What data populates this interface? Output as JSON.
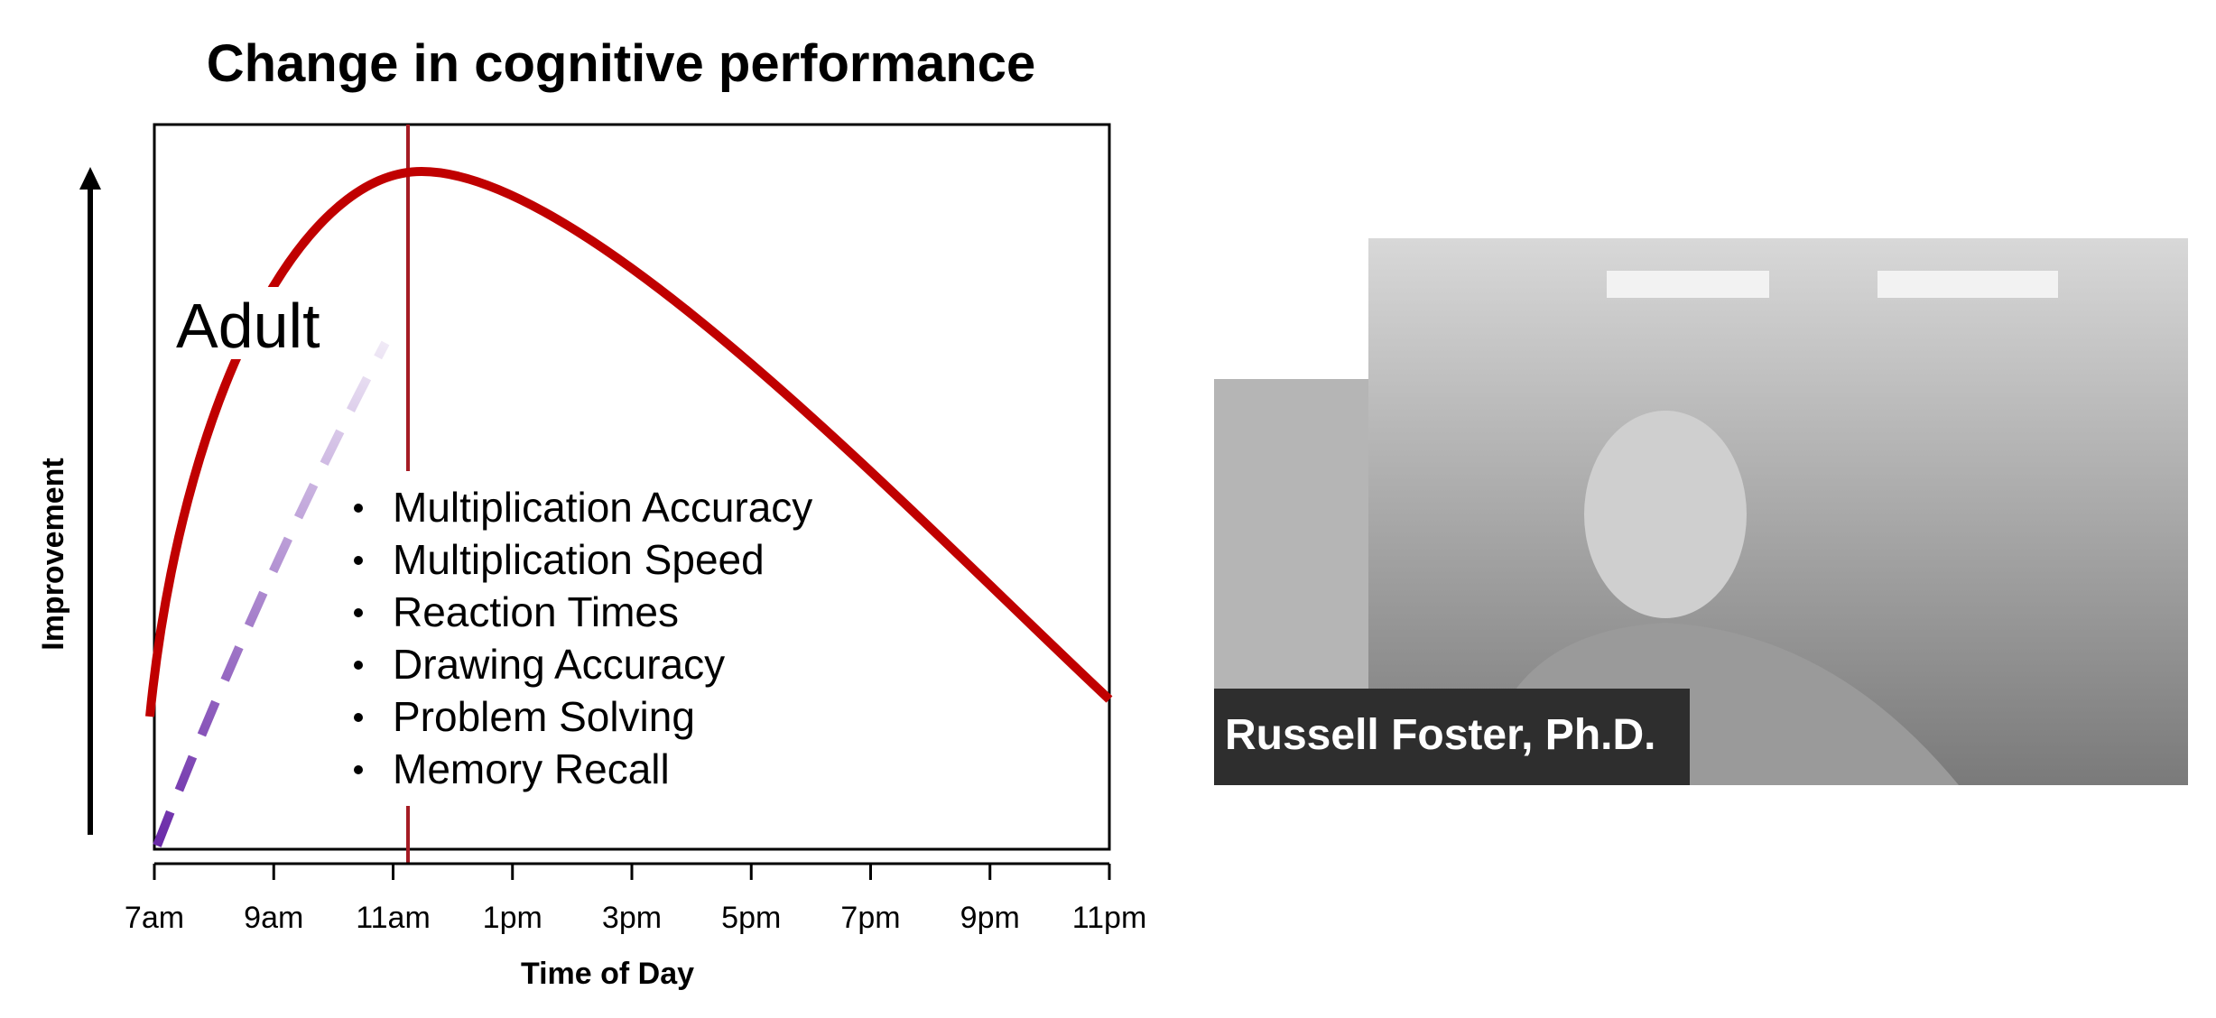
{
  "title": "Change in cognitive performance",
  "y_axis_label": "Improvement",
  "x_axis_label": "Time of Day",
  "x_ticks": [
    "7am",
    "9am",
    "11am",
    "1pm",
    "3pm",
    "5pm",
    "7pm",
    "9pm",
    "11pm"
  ],
  "curve_label": "Adult",
  "bullets": [
    "Multiplication Accuracy",
    "Multiplication Speed",
    "Reaction Times",
    "Drawing Accuracy",
    "Problem Solving",
    "Memory Recall"
  ],
  "video": {
    "caption": "Russell Foster, Ph.D."
  }
}
